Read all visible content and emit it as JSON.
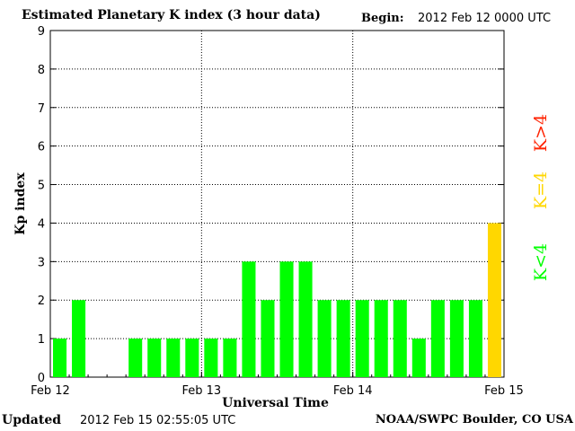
{
  "header": {
    "title": "Estimated Planetary K index (3 hour data)",
    "begin_label": "Begin:",
    "begin_value": "2012 Feb 12 0000 UTC"
  },
  "footer": {
    "updated_label": "Updated",
    "updated_value": "2012 Feb 15 02:55:05 UTC",
    "credit": "NOAA/SWPC Boulder, CO USA"
  },
  "colors": {
    "below": "#00ff00",
    "equal": "#ffd700",
    "above": "#ff2200",
    "bar_edge": "#00aa00"
  },
  "chart_data": {
    "type": "bar",
    "title": "Estimated Planetary K index (3 hour data)",
    "xlabel": "Universal Time",
    "ylabel": "Kp index",
    "ylim": [
      0,
      9
    ],
    "yticks": [
      0,
      1,
      2,
      3,
      4,
      5,
      6,
      7,
      8,
      9
    ],
    "xticks": [
      "Feb 12",
      "Feb 13",
      "Feb 14",
      "Feb 15"
    ],
    "grid": true,
    "bar_interval_hours": 3,
    "values": [
      1,
      2,
      0,
      0,
      1,
      1,
      1,
      1,
      1,
      1,
      3,
      2,
      3,
      3,
      2,
      2,
      2,
      2,
      2,
      1,
      2,
      2,
      2,
      4
    ],
    "legend": [
      "K<4",
      "K=4",
      "K>4"
    ],
    "legend_placement": "right"
  }
}
